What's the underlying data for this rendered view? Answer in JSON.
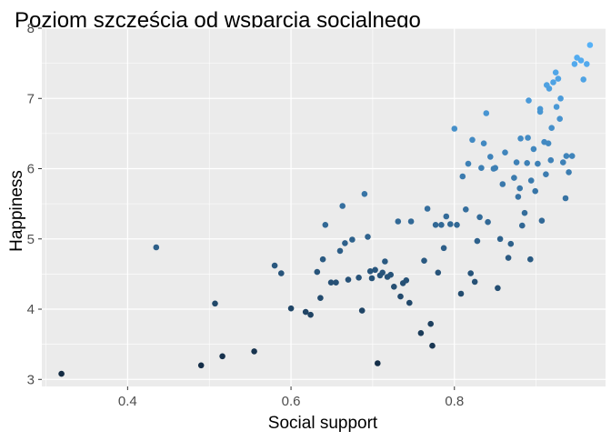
{
  "chart_data": {
    "type": "scatter",
    "title": "Poziom szczęścia od wsparcia socjalnego",
    "xlabel": "Social support",
    "ylabel": "Happiness",
    "xlim": [
      0.295,
      0.985
    ],
    "ylim": [
      2.9,
      8.0
    ],
    "x_ticks": [
      {
        "value": 0.4,
        "label": "0.4"
      },
      {
        "value": 0.6,
        "label": "0.6"
      },
      {
        "value": 0.8,
        "label": "0.8"
      }
    ],
    "y_ticks": [
      {
        "value": 3,
        "label": "3"
      },
      {
        "value": 4,
        "label": "4"
      },
      {
        "value": 5,
        "label": "5"
      },
      {
        "value": 6,
        "label": "6"
      },
      {
        "value": 7,
        "label": "7"
      },
      {
        "value": 8,
        "label": "8"
      }
    ],
    "grid": true,
    "colors": {
      "panel_background": "#ebebeb",
      "grid": "#ffffff",
      "point_low": "#132b43",
      "point_high": "#56b1f7"
    },
    "x": [
      0.319,
      0.435,
      0.49,
      0.507,
      0.516,
      0.555,
      0.58,
      0.588,
      0.6,
      0.618,
      0.624,
      0.632,
      0.636,
      0.639,
      0.642,
      0.649,
      0.655,
      0.66,
      0.663,
      0.666,
      0.67,
      0.675,
      0.683,
      0.687,
      0.69,
      0.694,
      0.697,
      0.699,
      0.703,
      0.706,
      0.709,
      0.712,
      0.715,
      0.718,
      0.722,
      0.726,
      0.731,
      0.734,
      0.737,
      0.741,
      0.745,
      0.747,
      0.759,
      0.763,
      0.767,
      0.771,
      0.773,
      0.777,
      0.78,
      0.784,
      0.787,
      0.79,
      0.795,
      0.8,
      0.803,
      0.808,
      0.81,
      0.814,
      0.817,
      0.82,
      0.822,
      0.825,
      0.828,
      0.831,
      0.833,
      0.836,
      0.839,
      0.841,
      0.844,
      0.848,
      0.85,
      0.853,
      0.856,
      0.859,
      0.862,
      0.866,
      0.869,
      0.873,
      0.876,
      0.878,
      0.881,
      0.883,
      0.886,
      0.889,
      0.891,
      0.894,
      0.897,
      0.899,
      0.902,
      0.905,
      0.907,
      0.91,
      0.913,
      0.916,
      0.919,
      0.921,
      0.924,
      0.927,
      0.93,
      0.933,
      0.936,
      0.94,
      0.944,
      0.947,
      0.95,
      0.955,
      0.958,
      0.962,
      0.966,
      0.88,
      0.89,
      0.905,
      0.912,
      0.893,
      0.918,
      0.925,
      0.929,
      0.937,
      0.915
    ],
    "y": [
      3.08,
      4.88,
      3.2,
      4.08,
      3.33,
      3.4,
      4.62,
      4.51,
      4.01,
      3.96,
      3.92,
      4.53,
      4.16,
      4.71,
      5.2,
      4.38,
      4.38,
      4.83,
      5.47,
      4.94,
      4.42,
      4.99,
      4.45,
      3.98,
      5.64,
      5.03,
      4.54,
      4.44,
      4.56,
      3.23,
      4.48,
      4.52,
      4.68,
      4.46,
      4.49,
      4.32,
      5.25,
      4.18,
      4.37,
      4.41,
      4.09,
      5.25,
      3.66,
      4.69,
      5.43,
      3.79,
      3.48,
      5.2,
      4.52,
      5.2,
      4.87,
      5.32,
      5.21,
      6.57,
      5.2,
      4.22,
      5.89,
      5.42,
      6.07,
      4.51,
      6.41,
      4.39,
      4.97,
      5.31,
      6.01,
      6.36,
      6.79,
      5.24,
      6.17,
      6.0,
      6.01,
      4.3,
      5.0,
      5.78,
      6.23,
      4.73,
      4.93,
      5.87,
      6.09,
      5.6,
      6.43,
      5.19,
      5.37,
      6.08,
      6.97,
      5.83,
      6.28,
      5.68,
      6.07,
      6.85,
      5.26,
      6.38,
      7.19,
      7.14,
      6.58,
      7.23,
      7.37,
      7.28,
      7.0,
      6.09,
      5.58,
      5.95,
      6.18,
      7.49,
      7.58,
      7.54,
      7.27,
      7.49,
      7.76,
      5.72,
      6.44,
      6.81,
      5.92,
      4.71,
      6.12,
      6.88,
      6.71,
      6.18,
      6.36
    ]
  }
}
